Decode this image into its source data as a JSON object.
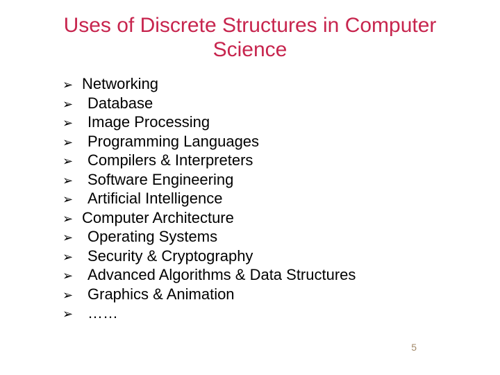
{
  "title": "Uses of Discrete Structures in Computer Science",
  "title_color": "#c7254e",
  "bullet_marker": "➢",
  "text_color": "#000000",
  "background_color": "#ffffff",
  "title_fontsize": 30,
  "item_fontsize": 22,
  "items": [
    {
      "text": "Networking",
      "indent": false
    },
    {
      "text": "Database",
      "indent": true
    },
    {
      "text": "Image Processing",
      "indent": true
    },
    {
      "text": "Programming Languages",
      "indent": true
    },
    {
      "text": "Compilers & Interpreters",
      "indent": true
    },
    {
      "text": "Software Engineering",
      "indent": true
    },
    {
      "text": "Artificial Intelligence",
      "indent": true
    },
    {
      "text": "Computer Architecture",
      "indent": false
    },
    {
      "text": "Operating Systems",
      "indent": true
    },
    {
      "text": "Security & Cryptography",
      "indent": true
    },
    {
      "text": "Advanced Algorithms & Data Structures",
      "indent": true
    },
    {
      "text": "Graphics & Animation",
      "indent": true
    },
    {
      "text": "……",
      "indent": true
    }
  ],
  "page_number": "5"
}
